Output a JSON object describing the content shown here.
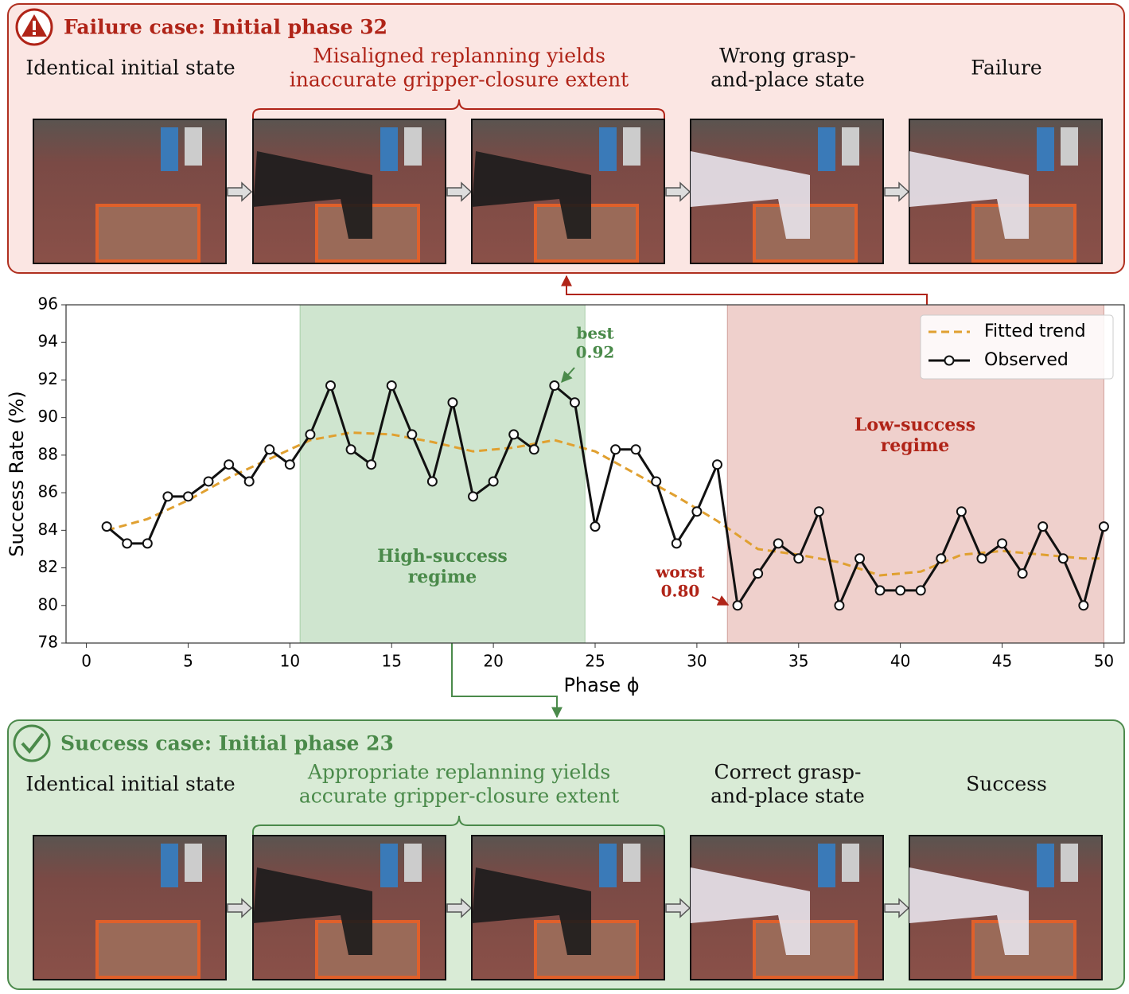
{
  "failure_case": {
    "title": "Failure case: Initial phase 32",
    "captions": [
      [
        "Identical initial state"
      ],
      [
        "Misaligned replanning yields",
        "inaccurate gripper-closure extent"
      ],
      [
        "Wrong grasp-",
        "and-place state"
      ],
      [
        "Failure"
      ]
    ]
  },
  "success_case": {
    "title": "Success case: Initial phase 23",
    "captions": [
      [
        "Identical initial state"
      ],
      [
        "Appropriate replanning yields",
        "accurate gripper-closure extent"
      ],
      [
        "Correct grasp-",
        "and-place state"
      ],
      [
        "Success"
      ]
    ]
  },
  "chart_data": {
    "type": "line",
    "x_label": "Phase ϕ",
    "y_label": "Success Rate (%)",
    "xlim": [
      -1,
      51
    ],
    "ylim": [
      78,
      96
    ],
    "xticks": [
      0,
      5,
      10,
      15,
      20,
      25,
      30,
      35,
      40,
      45,
      50
    ],
    "yticks": [
      78,
      80,
      82,
      84,
      86,
      88,
      90,
      92,
      94,
      96
    ],
    "legend": "upper right",
    "regions": [
      {
        "x": [
          10.5,
          24.5
        ],
        "color": "#cfe5cf",
        "text_color": "#4a8a4a",
        "label": [
          "High-success",
          "regime"
        ]
      },
      {
        "x": [
          31.5,
          50
        ],
        "color": "#efd0cc",
        "text_color": "#b02418",
        "label": [
          "Low-success",
          "regime"
        ]
      }
    ],
    "annotations": [
      {
        "text": [
          "best",
          "0.92"
        ],
        "color": "#4a8a4a"
      },
      {
        "text": [
          "worst",
          "0.80"
        ],
        "color": "#b02418"
      }
    ],
    "series": [
      {
        "name": "Fitted trend",
        "color": "#e0a030",
        "dashed": true,
        "x": [
          1,
          3,
          5,
          7,
          9,
          11,
          13,
          15,
          17,
          19,
          21,
          23,
          25,
          27,
          29,
          31,
          33,
          35,
          37,
          39,
          41,
          43,
          45,
          47,
          49,
          50
        ],
        "values": [
          84.0,
          84.6,
          85.6,
          86.8,
          87.8,
          88.8,
          89.2,
          89.1,
          88.7,
          88.2,
          88.4,
          88.8,
          88.2,
          87.0,
          85.8,
          84.5,
          83.0,
          82.7,
          82.3,
          81.6,
          81.8,
          82.7,
          82.9,
          82.7,
          82.5,
          82.5
        ]
      },
      {
        "name": "Observed",
        "color": "#111111",
        "dashed": false,
        "x": [
          1,
          2,
          3,
          4,
          5,
          6,
          7,
          8,
          9,
          10,
          11,
          12,
          13,
          14,
          15,
          16,
          17,
          18,
          19,
          20,
          21,
          22,
          23,
          24,
          25,
          26,
          27,
          28,
          29,
          30,
          31,
          32,
          33,
          34,
          35,
          36,
          37,
          38,
          39,
          40,
          41,
          42,
          43,
          44,
          45,
          46,
          47,
          48,
          49,
          50
        ],
        "values": [
          84.2,
          83.3,
          83.3,
          85.8,
          85.8,
          86.6,
          87.5,
          86.6,
          88.3,
          87.5,
          89.1,
          91.7,
          88.3,
          87.5,
          91.7,
          89.1,
          86.6,
          90.8,
          85.8,
          86.6,
          89.1,
          88.3,
          91.7,
          90.8,
          84.2,
          88.3,
          88.3,
          86.6,
          83.3,
          85.0,
          87.5,
          80.0,
          81.7,
          83.3,
          82.5,
          85.0,
          80.0,
          82.5,
          80.8,
          80.8,
          80.8,
          82.5,
          85.0,
          82.5,
          83.3,
          81.7,
          84.2,
          82.5,
          80.0,
          84.2
        ]
      }
    ]
  }
}
